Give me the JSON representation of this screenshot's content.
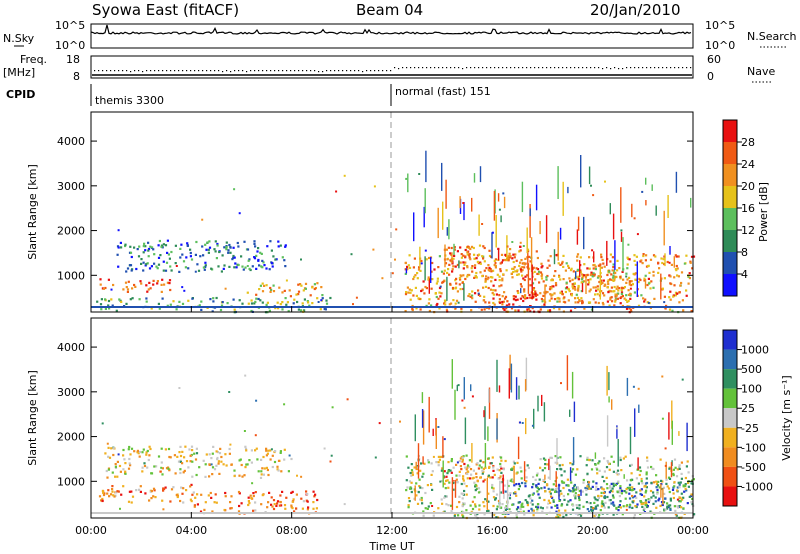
{
  "header": {
    "title": "Syowa East (fitACF)",
    "beam": "Beam 04",
    "date": "20/Jan/2010"
  },
  "noise_panel": {
    "left_label": "N.Sky",
    "right_label": "N.Search",
    "left_ticks": [
      "10^5",
      "10^0"
    ],
    "right_ticks": [
      "10^5",
      "10^0"
    ]
  },
  "freq_panel": {
    "left_label_1": "Freq.",
    "left_label_2": "[MHz]",
    "right_label": "Nave",
    "left_ticks": [
      "18",
      "8"
    ],
    "right_ticks": [
      "60",
      "0"
    ]
  },
  "cpid_panel": {
    "label": "CPID",
    "segments": [
      "themis 3300",
      "normal (fast) 151"
    ]
  },
  "colors": {
    "power_scale": [
      "#1010ff",
      "#2050b0",
      "#2e8b57",
      "#5cbf5c",
      "#e6c21a",
      "#f09020",
      "#f05a14",
      "#e81010"
    ],
    "velocity_scale": [
      "#1f2fd0",
      "#2c6fb0",
      "#2f8f60",
      "#63c23a",
      "#c8c8c8",
      "#f0b020",
      "#f08c20",
      "#f05014",
      "#e81010"
    ],
    "dashed_line": "#999999"
  },
  "chart_data": [
    {
      "type": "heatmap",
      "name": "power",
      "xlabel": "Time UT",
      "ylabel": "Slant Range [km]",
      "x_ticks": [
        "00:00",
        "04:00",
        "08:00",
        "12:00",
        "16:00",
        "20:00",
        "00:00"
      ],
      "y_ticks": [
        "1000",
        "2000",
        "3000",
        "4000"
      ],
      "y_tick_values": [
        1000,
        2000,
        3000,
        4000
      ],
      "ylim": [
        180,
        4650
      ],
      "xlim_hours": [
        0,
        24
      ],
      "colorbar_label": "Power [dB]",
      "colorbar_ticks": [
        "4",
        "8",
        "12",
        "16",
        "20",
        "24",
        "28"
      ],
      "colorbar_range": [
        0,
        32
      ],
      "echo_regions": [
        {
          "t0": 0.3,
          "t1": 3.2,
          "r0": 650,
          "r1": 950,
          "level": 0.85
        },
        {
          "t0": 0.2,
          "t1": 9.5,
          "r0": 200,
          "r1": 520,
          "level": 0.4
        },
        {
          "t0": 1.0,
          "t1": 7.8,
          "r0": 1100,
          "r1": 1800,
          "level": 0.25
        },
        {
          "t0": 6.2,
          "t1": 9.2,
          "r0": 550,
          "r1": 850,
          "level": 0.6
        },
        {
          "t0": 12.5,
          "t1": 24.0,
          "r0": 200,
          "r1": 1500,
          "level": 0.7
        },
        {
          "t0": 14.0,
          "t1": 17.8,
          "r0": 900,
          "r1": 1700,
          "level": 0.75
        },
        {
          "t0": 16.0,
          "t1": 18.5,
          "r0": 200,
          "r1": 600,
          "level": 0.95
        },
        {
          "t0": 18.0,
          "t1": 21.5,
          "r0": 400,
          "r1": 1300,
          "level": 0.65
        }
      ]
    },
    {
      "type": "heatmap",
      "name": "velocity",
      "xlabel": "Time UT",
      "ylabel": "Slant Range [km]",
      "x_ticks": [
        "00:00",
        "04:00",
        "08:00",
        "12:00",
        "16:00",
        "20:00",
        "00:00"
      ],
      "y_ticks": [
        "1000",
        "2000",
        "3000",
        "4000"
      ],
      "y_tick_values": [
        1000,
        2000,
        3000,
        4000
      ],
      "ylim": [
        180,
        4650
      ],
      "xlim_hours": [
        0,
        24
      ],
      "colorbar_label": "Velocity [m s⁻¹]",
      "colorbar_ticks": [
        "1000",
        "500",
        "100",
        "25",
        "-25",
        "-100",
        "-500",
        "-1000"
      ],
      "echo_regions": [
        {
          "t0": 0.3,
          "t1": 4.0,
          "r0": 550,
          "r1": 950,
          "level": 0.3
        },
        {
          "t0": 4.0,
          "t1": 9.0,
          "r0": 300,
          "r1": 800,
          "level": 0.25
        },
        {
          "t0": 0.5,
          "t1": 8.0,
          "r0": 1100,
          "r1": 1800,
          "level": 0.45
        },
        {
          "t0": 14.0,
          "t1": 16.5,
          "r0": 1000,
          "r1": 1500,
          "level": 0.2
        },
        {
          "t0": 16.0,
          "t1": 24.0,
          "r0": 300,
          "r1": 1000,
          "level": 0.8
        },
        {
          "t0": 12.5,
          "t1": 24.0,
          "r0": 200,
          "r1": 1600,
          "level": 0.55
        }
      ]
    }
  ]
}
